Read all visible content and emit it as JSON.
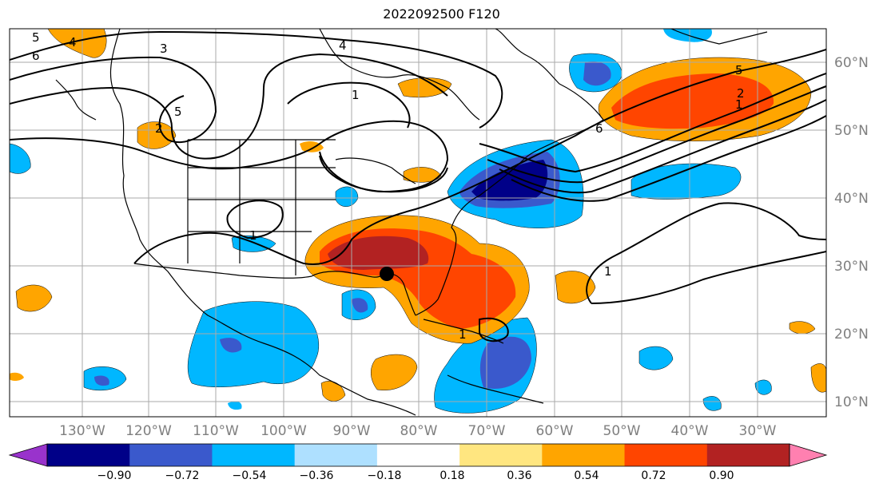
{
  "title": "2022092500 F120",
  "longitude_labels": [
    "130°W",
    "120°W",
    "110°W",
    "100°W",
    "90°W",
    "80°W",
    "70°W",
    "60°W",
    "50°W",
    "40°W",
    "30°W"
  ],
  "latitude_labels": [
    "60°N",
    "50°N",
    "40°N",
    "30°N",
    "20°N",
    "10°N"
  ],
  "colorbar": {
    "ticks": [
      "−0.90",
      "−0.72",
      "−0.54",
      "−0.36",
      "−0.18",
      "0.18",
      "0.36",
      "0.54",
      "0.72",
      "0.90"
    ],
    "colors": [
      "#9933cc",
      "#000088",
      "#3a59cc",
      "#00b7ff",
      "#aee0ff",
      "#ffffff",
      "#ffe680",
      "#ffa500",
      "#ff4500",
      "#b22222",
      "#ff80b0"
    ]
  },
  "contour_labels": [
    "5",
    "4",
    "3",
    "6",
    "5",
    "2",
    "4",
    "1",
    "5",
    "1",
    "5",
    "2",
    "1",
    "6",
    "1",
    "1"
  ],
  "marker": "storm-position"
}
